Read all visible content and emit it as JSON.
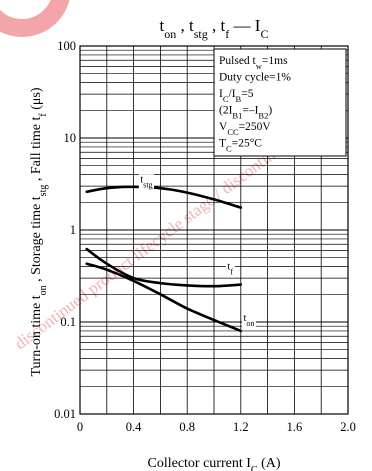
{
  "watermark_text": "discontinued product lifecycle stage / discontinued type",
  "chart_data": {
    "type": "line",
    "title": {
      "t1": "t",
      "s1": "on",
      "sep1": " , t",
      "s2": "stg",
      "sep2": " , t",
      "s3": "f",
      "mid": " — I",
      "s4": "C"
    },
    "ylabel": {
      "p1": "Turn-on time t",
      "s1": "on",
      "p2": " , Storage time t",
      "s2": "stg",
      "p3": " , Fall time t",
      "s3": "f",
      "p4": "  (μs)"
    },
    "xlabel": {
      "p1": "Collector current  I",
      "s1": "C",
      "p2": "  (A)"
    },
    "xlim": [
      0,
      2.0
    ],
    "ylim": [
      0.01,
      100
    ],
    "y_scale": "log",
    "grid": true,
    "x_ticks": [
      "0",
      "0.4",
      "0.8",
      "1.2",
      "1.6",
      "2.0"
    ],
    "x_tick_values": [
      0,
      0.4,
      0.8,
      1.2,
      1.6,
      2.0
    ],
    "y_ticks": [
      "0.01",
      "0.1",
      "1",
      "10",
      "100"
    ],
    "y_tick_values": [
      0.01,
      0.1,
      1,
      10,
      100
    ],
    "conditions": [
      {
        "p1": "Pulsed t",
        "s1": "w",
        "p2": "=1ms"
      },
      {
        "p1": "Duty cycle=1%"
      },
      {
        "p1": "I",
        "s1": "C",
        "p2": "/I",
        "s2": "B",
        "p3": "=5"
      },
      {
        "p1": "(2I",
        "s1": "B1",
        "p2": "=–I",
        "s2": "B2",
        "p3": ")"
      },
      {
        "p1": "V",
        "s1": "CC",
        "p2": "=250V"
      },
      {
        "p1": "T",
        "s1": "C",
        "p2": "=25°C"
      }
    ],
    "series": [
      {
        "name": "t_stg",
        "label_main": "t",
        "label_sub": "stg",
        "label_at": [
          0.45,
          3.3
        ],
        "x": [
          0.05,
          0.2,
          0.4,
          0.6,
          0.8,
          1.0,
          1.2
        ],
        "y": [
          2.6,
          2.85,
          2.95,
          2.85,
          2.55,
          2.15,
          1.75
        ]
      },
      {
        "name": "t_f",
        "label_main": "t",
        "label_sub": "f",
        "label_at": [
          1.1,
          0.37
        ],
        "x": [
          0.05,
          0.2,
          0.4,
          0.6,
          0.8,
          1.0,
          1.2
        ],
        "y": [
          0.62,
          0.43,
          0.3,
          0.265,
          0.25,
          0.245,
          0.255
        ]
      },
      {
        "name": "t_on",
        "label_main": "t",
        "label_sub": "on",
        "label_at": [
          1.22,
          0.103
        ],
        "x": [
          0.05,
          0.2,
          0.4,
          0.6,
          0.8,
          1.0,
          1.2
        ],
        "y": [
          0.43,
          0.37,
          0.28,
          0.2,
          0.14,
          0.105,
          0.08
        ]
      }
    ]
  }
}
